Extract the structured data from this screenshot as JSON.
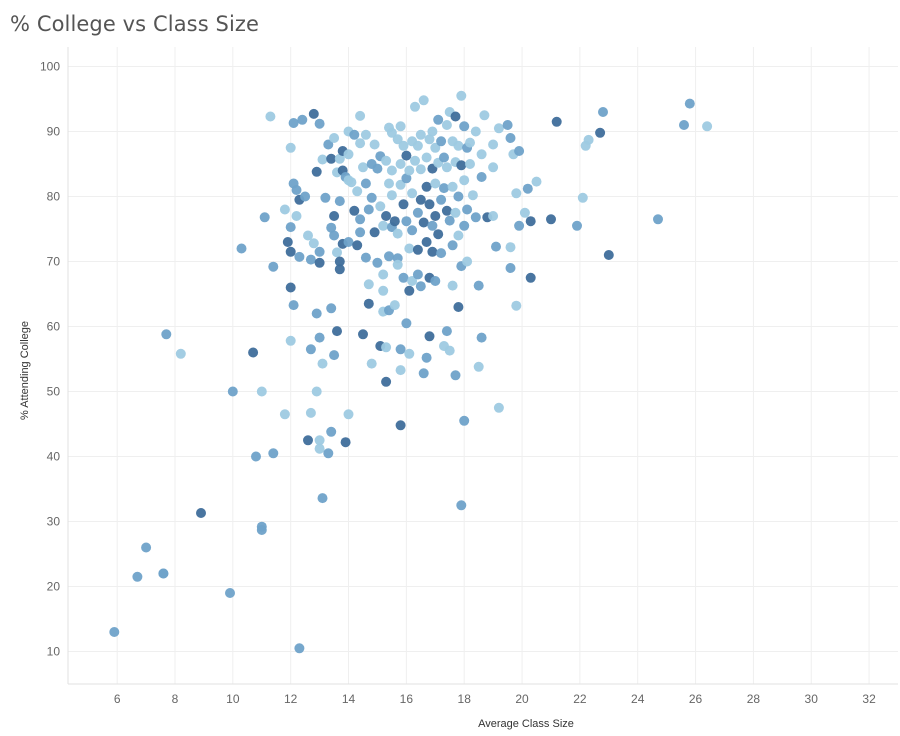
{
  "chart_data": {
    "type": "scatter",
    "title": "% College vs Class Size",
    "xlabel": "Average Class Size",
    "ylabel": "% Attending College",
    "xlim": [
      4.3,
      33
    ],
    "ylim": [
      5,
      103
    ],
    "xticks": [
      6,
      8,
      10,
      12,
      14,
      16,
      18,
      20,
      22,
      24,
      26,
      28,
      30,
      32
    ],
    "yticks": [
      10,
      20,
      30,
      40,
      50,
      60,
      70,
      80,
      90,
      100
    ],
    "grid": true,
    "legend": "none",
    "colors": {
      "light": "#9ecae1",
      "mid": "#6fa2c9",
      "dark": "#3f6e9b"
    },
    "points": [
      [
        5.9,
        13
      ],
      [
        6.7,
        21.5
      ],
      [
        7.0,
        26
      ],
      [
        7.6,
        22
      ],
      [
        7.6,
        22
      ],
      [
        7.7,
        58.8
      ],
      [
        8.2,
        55.8
      ],
      [
        8.9,
        31.3
      ],
      [
        9.9,
        19
      ],
      [
        10.0,
        50
      ],
      [
        10.3,
        72
      ],
      [
        10.7,
        56
      ],
      [
        10.8,
        40
      ],
      [
        11.0,
        50
      ],
      [
        11.0,
        29.2
      ],
      [
        11.0,
        28.7
      ],
      [
        11.1,
        76.8
      ],
      [
        11.3,
        92.3
      ],
      [
        11.4,
        69.2
      ],
      [
        11.4,
        40.5
      ],
      [
        11.8,
        46.5
      ],
      [
        11.8,
        78
      ],
      [
        11.9,
        73
      ],
      [
        12.0,
        66
      ],
      [
        12.0,
        87.5
      ],
      [
        12.0,
        75.3
      ],
      [
        12.0,
        71.5
      ],
      [
        12.0,
        57.8
      ],
      [
        12.1,
        91.3
      ],
      [
        12.1,
        82
      ],
      [
        12.1,
        63.3
      ],
      [
        12.2,
        81
      ],
      [
        12.2,
        77
      ],
      [
        12.3,
        79.5
      ],
      [
        12.3,
        70.7
      ],
      [
        12.3,
        10.5
      ],
      [
        12.4,
        91.8
      ],
      [
        12.5,
        80
      ],
      [
        12.6,
        74
      ],
      [
        12.6,
        42.5
      ],
      [
        12.7,
        56.5
      ],
      [
        12.7,
        70.3
      ],
      [
        12.7,
        46.7
      ],
      [
        12.8,
        92.7
      ],
      [
        12.8,
        72.8
      ],
      [
        12.9,
        83.8
      ],
      [
        12.9,
        62
      ],
      [
        12.9,
        50
      ],
      [
        13.0,
        91.2
      ],
      [
        13.0,
        71.5
      ],
      [
        13.0,
        69.8
      ],
      [
        13.0,
        58.3
      ],
      [
        13.0,
        42.5
      ],
      [
        13.0,
        41.2
      ],
      [
        13.1,
        85.7
      ],
      [
        13.1,
        54.3
      ],
      [
        13.1,
        33.6
      ],
      [
        13.2,
        79.8
      ],
      [
        13.3,
        88
      ],
      [
        13.3,
        40.5
      ],
      [
        13.4,
        85.8
      ],
      [
        13.4,
        75.2
      ],
      [
        13.4,
        43.8
      ],
      [
        13.4,
        62.8
      ],
      [
        13.5,
        89
      ],
      [
        13.5,
        77
      ],
      [
        13.5,
        55.6
      ],
      [
        13.5,
        74
      ],
      [
        13.6,
        83.7
      ],
      [
        13.6,
        71.4
      ],
      [
        13.6,
        59.3
      ],
      [
        13.7,
        85.8
      ],
      [
        13.7,
        79.3
      ],
      [
        13.7,
        70
      ],
      [
        13.7,
        68.8
      ],
      [
        13.8,
        87
      ],
      [
        13.8,
        84
      ],
      [
        13.8,
        72.7
      ],
      [
        13.9,
        42.2
      ],
      [
        13.9,
        83
      ],
      [
        14.0,
        90
      ],
      [
        14.0,
        86.5
      ],
      [
        14.0,
        82.5
      ],
      [
        14.0,
        73
      ],
      [
        14.0,
        46.5
      ],
      [
        14.1,
        82.2
      ],
      [
        14.2,
        89.5
      ],
      [
        14.2,
        77.8
      ],
      [
        14.3,
        80.8
      ],
      [
        14.3,
        72.5
      ],
      [
        14.4,
        92.4
      ],
      [
        14.4,
        88.2
      ],
      [
        14.4,
        76.5
      ],
      [
        14.4,
        74.5
      ],
      [
        14.5,
        84.5
      ],
      [
        14.5,
        58.8
      ],
      [
        14.6,
        89.5
      ],
      [
        14.6,
        82
      ],
      [
        14.6,
        70.6
      ],
      [
        14.7,
        78
      ],
      [
        14.7,
        66.5
      ],
      [
        14.7,
        63.5
      ],
      [
        14.8,
        85
      ],
      [
        14.8,
        79.8
      ],
      [
        14.8,
        54.3
      ],
      [
        14.9,
        88
      ],
      [
        14.9,
        74.5
      ],
      [
        15.0,
        84.3
      ],
      [
        15.0,
        69.8
      ],
      [
        15.1,
        86.2
      ],
      [
        15.1,
        78.5
      ],
      [
        15.1,
        57
      ],
      [
        15.2,
        62.3
      ],
      [
        15.2,
        65.5
      ],
      [
        15.2,
        75.5
      ],
      [
        15.2,
        68
      ],
      [
        15.3,
        85.5
      ],
      [
        15.3,
        77
      ],
      [
        15.3,
        51.5
      ],
      [
        15.3,
        56.8
      ],
      [
        15.4,
        90.6
      ],
      [
        15.4,
        82
      ],
      [
        15.4,
        70.8
      ],
      [
        15.4,
        62.5
      ],
      [
        15.5,
        89.8
      ],
      [
        15.5,
        84
      ],
      [
        15.5,
        80.2
      ],
      [
        15.5,
        75.3
      ],
      [
        15.6,
        76.2
      ],
      [
        15.6,
        63.3
      ],
      [
        15.7,
        88.8
      ],
      [
        15.7,
        74.3
      ],
      [
        15.7,
        70.5
      ],
      [
        15.7,
        69.5
      ],
      [
        15.8,
        90.8
      ],
      [
        15.8,
        85
      ],
      [
        15.8,
        81.8
      ],
      [
        15.8,
        56.5
      ],
      [
        15.8,
        53.3
      ],
      [
        15.8,
        44.8
      ],
      [
        15.9,
        87.8
      ],
      [
        15.9,
        78.8
      ],
      [
        15.9,
        67.5
      ],
      [
        16.0,
        86.3
      ],
      [
        16.0,
        82.8
      ],
      [
        16.0,
        76.2
      ],
      [
        16.0,
        60.5
      ],
      [
        16.1,
        84
      ],
      [
        16.1,
        72
      ],
      [
        16.1,
        65.5
      ],
      [
        16.1,
        55.8
      ],
      [
        16.2,
        88.5
      ],
      [
        16.2,
        80.5
      ],
      [
        16.2,
        74.8
      ],
      [
        16.2,
        67
      ],
      [
        16.3,
        93.8
      ],
      [
        16.3,
        85.5
      ],
      [
        16.4,
        87.8
      ],
      [
        16.4,
        77.5
      ],
      [
        16.4,
        71.8
      ],
      [
        16.4,
        68
      ],
      [
        16.5,
        89.5
      ],
      [
        16.5,
        84.2
      ],
      [
        16.5,
        79.5
      ],
      [
        16.5,
        66.2
      ],
      [
        16.6,
        94.8
      ],
      [
        16.6,
        76
      ],
      [
        16.6,
        52.8
      ],
      [
        16.7,
        86
      ],
      [
        16.7,
        81.5
      ],
      [
        16.7,
        73
      ],
      [
        16.7,
        55.2
      ],
      [
        16.8,
        88.8
      ],
      [
        16.8,
        78.8
      ],
      [
        16.8,
        67.5
      ],
      [
        16.8,
        58.5
      ],
      [
        16.9,
        90
      ],
      [
        16.9,
        84.3
      ],
      [
        16.9,
        75.5
      ],
      [
        16.9,
        71.5
      ],
      [
        17.0,
        87.5
      ],
      [
        17.0,
        82
      ],
      [
        17.0,
        77
      ],
      [
        17.0,
        67
      ],
      [
        17.1,
        91.8
      ],
      [
        17.1,
        85.2
      ],
      [
        17.1,
        74.2
      ],
      [
        17.2,
        88.5
      ],
      [
        17.2,
        79.5
      ],
      [
        17.2,
        71.3
      ],
      [
        17.3,
        86
      ],
      [
        17.3,
        81.3
      ],
      [
        17.3,
        57
      ],
      [
        17.4,
        91
      ],
      [
        17.4,
        84.5
      ],
      [
        17.4,
        77.8
      ],
      [
        17.4,
        59.3
      ],
      [
        17.5,
        93
      ],
      [
        17.5,
        76.3
      ],
      [
        17.5,
        56.3
      ],
      [
        17.6,
        88.5
      ],
      [
        17.6,
        81.5
      ],
      [
        17.6,
        72.5
      ],
      [
        17.6,
        66.3
      ],
      [
        17.7,
        92.3
      ],
      [
        17.7,
        85.3
      ],
      [
        17.7,
        77.5
      ],
      [
        17.7,
        52.5
      ],
      [
        17.8,
        87.8
      ],
      [
        17.8,
        80
      ],
      [
        17.8,
        74
      ],
      [
        17.8,
        63
      ],
      [
        17.9,
        95.5
      ],
      [
        17.9,
        84.8
      ],
      [
        17.9,
        69.3
      ],
      [
        17.9,
        32.5
      ],
      [
        18.0,
        90.8
      ],
      [
        18.0,
        82.5
      ],
      [
        18.0,
        75.5
      ],
      [
        18.0,
        45.5
      ],
      [
        18.1,
        87.5
      ],
      [
        18.1,
        78
      ],
      [
        18.1,
        70
      ],
      [
        18.2,
        88.3
      ],
      [
        18.2,
        85
      ],
      [
        18.3,
        80.2
      ],
      [
        18.4,
        90
      ],
      [
        18.4,
        76.8
      ],
      [
        18.5,
        66.3
      ],
      [
        18.5,
        53.8
      ],
      [
        18.6,
        86.5
      ],
      [
        18.6,
        83
      ],
      [
        18.6,
        58.3
      ],
      [
        18.7,
        92.5
      ],
      [
        18.8,
        76.8
      ],
      [
        19.0,
        88
      ],
      [
        19.0,
        84.5
      ],
      [
        19.0,
        77
      ],
      [
        19.1,
        72.3
      ],
      [
        19.2,
        90.5
      ],
      [
        19.2,
        47.5
      ],
      [
        19.5,
        91
      ],
      [
        19.6,
        89
      ],
      [
        19.6,
        72.2
      ],
      [
        19.6,
        69
      ],
      [
        19.7,
        86.5
      ],
      [
        19.8,
        80.5
      ],
      [
        19.8,
        63.2
      ],
      [
        19.9,
        87
      ],
      [
        19.9,
        75.5
      ],
      [
        20.1,
        77.5
      ],
      [
        20.2,
        81.2
      ],
      [
        20.3,
        76.2
      ],
      [
        20.3,
        67.5
      ],
      [
        20.5,
        82.3
      ],
      [
        21.0,
        76.5
      ],
      [
        21.2,
        91.5
      ],
      [
        21.9,
        75.5
      ],
      [
        22.1,
        79.8
      ],
      [
        22.2,
        87.8
      ],
      [
        22.3,
        88.7
      ],
      [
        22.7,
        89.8
      ],
      [
        22.8,
        93
      ],
      [
        23.0,
        71
      ],
      [
        24.7,
        76.5
      ],
      [
        25.6,
        91
      ],
      [
        25.8,
        94.3
      ],
      [
        26.4,
        90.8
      ]
    ]
  }
}
